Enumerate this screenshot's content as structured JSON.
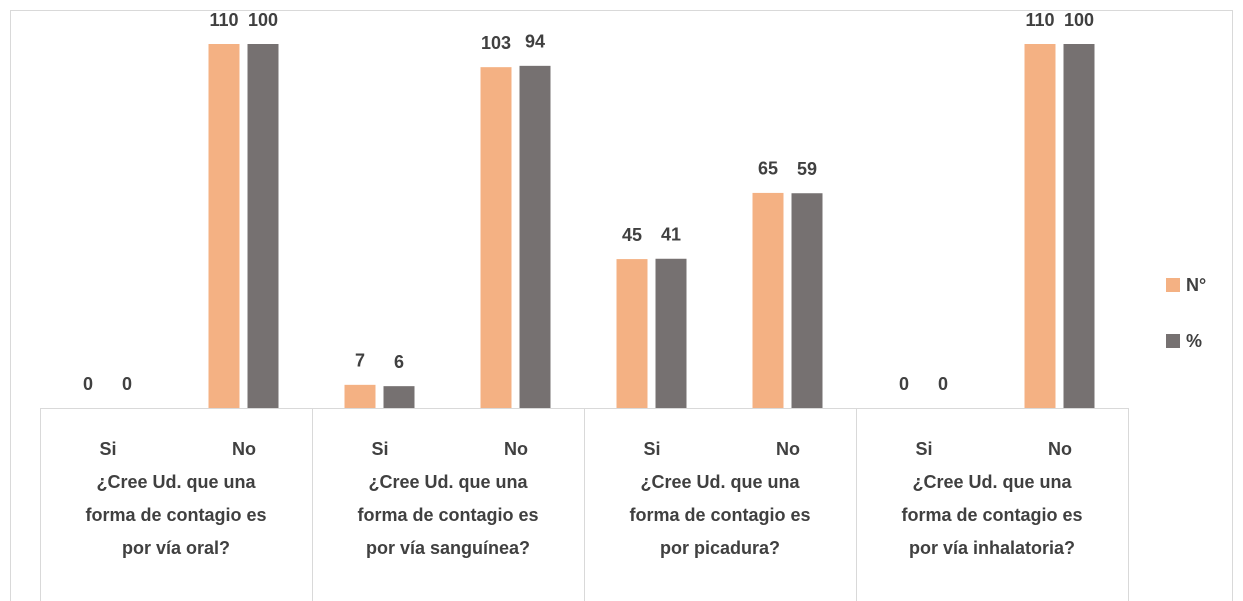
{
  "chart_data": {
    "type": "bar",
    "categories": [
      "Si",
      "No",
      "Si",
      "No",
      "Si",
      "No",
      "Si",
      "No"
    ],
    "groups": [
      [
        "¿Cree Ud. que una",
        "forma de contagio es",
        "por vía oral?"
      ],
      [
        "¿Cree Ud. que una",
        "forma de contagio es",
        "por vía sanguínea?"
      ],
      [
        "¿Cree Ud. que una",
        "forma de contagio es",
        "por picadura?"
      ],
      [
        "¿Cree Ud. que una",
        "forma de contagio es",
        "por vía inhalatoria?"
      ]
    ],
    "series": [
      {
        "name": "N°",
        "color": "#f4b183",
        "values": [
          0,
          110,
          7,
          103,
          45,
          65,
          0,
          110
        ]
      },
      {
        "name": "%",
        "color": "#767171",
        "axis": "y2",
        "values": [
          0,
          100,
          6,
          94,
          41,
          59,
          0,
          100
        ]
      }
    ],
    "ylim": [
      0,
      110
    ],
    "y2lim": [
      0,
      100
    ],
    "legend": "right"
  }
}
